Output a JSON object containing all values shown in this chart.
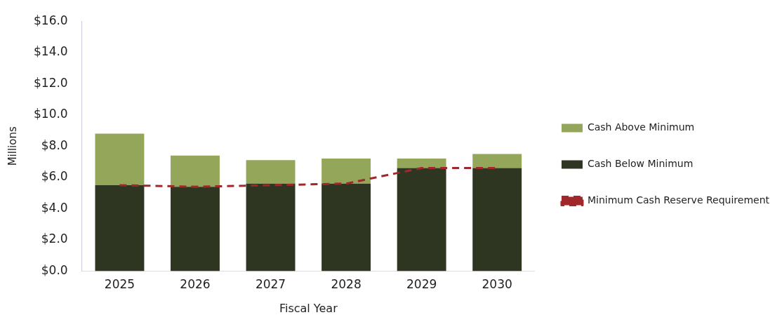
{
  "chart_data": {
    "type": "bar",
    "stacked": true,
    "xlabel": "Fiscal Year",
    "ylabel": "Millions",
    "categories": [
      "2025",
      "2026",
      "2027",
      "2028",
      "2029",
      "2030"
    ],
    "series": [
      {
        "name": "Cash Below Minimum",
        "color": "#2e3520",
        "values": [
          5.5,
          5.4,
          5.6,
          5.6,
          6.6,
          6.6
        ]
      },
      {
        "name": "Cash Above Minimum",
        "color": "#93a65a",
        "values": [
          3.3,
          2.0,
          1.5,
          1.6,
          0.6,
          0.9
        ]
      },
      {
        "name": "Minimum Cash Reserve Requirement",
        "type": "line",
        "color": "#a0282a",
        "line_style": "dashed",
        "marker": "none",
        "values": [
          5.5,
          5.4,
          5.5,
          5.6,
          6.6,
          6.6
        ]
      }
    ],
    "ylim": [
      0,
      16
    ],
    "yticks": [
      {
        "value": 0,
        "label": "$0.0"
      },
      {
        "value": 2,
        "label": "$2.0"
      },
      {
        "value": 4,
        "label": "$4.0"
      },
      {
        "value": 6,
        "label": "$6.0"
      },
      {
        "value": 8,
        "label": "$8.0"
      },
      {
        "value": 10,
        "label": "$10.0"
      },
      {
        "value": 12,
        "label": "$12.0"
      },
      {
        "value": 14,
        "label": "$14.0"
      },
      {
        "value": 16,
        "label": "$16.0"
      }
    ],
    "grid": false,
    "legend": "right"
  }
}
